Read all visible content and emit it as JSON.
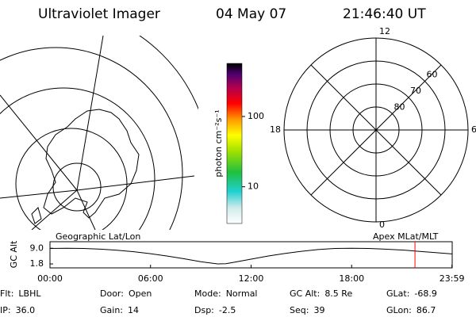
{
  "header": {
    "instrument": "Ultraviolet Imager",
    "date": "04 May 07",
    "time": "21:46:40 UT"
  },
  "map": {
    "label": "Geographic Lat/Lon"
  },
  "colorbar": {
    "label": "photon cm⁻²s⁻¹",
    "scale": "log",
    "lim": [
      3,
      570
    ],
    "ticks": [
      10,
      100
    ]
  },
  "polar": {
    "label": "Apex MLat/MLT",
    "lat_labels": [
      80,
      70,
      60
    ],
    "mlt_labels": [
      12,
      18,
      6,
      0
    ]
  },
  "chart_data": {
    "type": "line",
    "ylabel": "GC Alt",
    "color": "#000000",
    "x": [
      0,
      1,
      2,
      3,
      4,
      5,
      6,
      7,
      8,
      9,
      10,
      10.5,
      11,
      12,
      13,
      14,
      15,
      16,
      17,
      18,
      19,
      20,
      21,
      22,
      23,
      23.98
    ],
    "values": [
      8.9,
      9.0,
      8.9,
      8.6,
      8.1,
      7.4,
      6.5,
      5.4,
      4.2,
      2.8,
      1.8,
      1.9,
      2.6,
      4.0,
      5.4,
      6.6,
      7.6,
      8.4,
      8.9,
      9.0,
      8.9,
      8.6,
      8.2,
      7.6,
      7.0,
      6.4
    ],
    "xlim": [
      0,
      24
    ],
    "ylim": [
      0,
      12
    ],
    "xticks": [
      {
        "value": 0,
        "label": "00:00"
      },
      {
        "value": 6,
        "label": "06:00"
      },
      {
        "value": 12,
        "label": "12:00"
      },
      {
        "value": 18,
        "label": "18:00"
      },
      {
        "value": 23.983,
        "label": "23:59"
      }
    ],
    "yticks": [
      {
        "value": 9.0,
        "label": "9.0"
      },
      {
        "value": 1.8,
        "label": "1.8"
      }
    ],
    "marker_time": 21.778,
    "marker_color": "#ff0000"
  },
  "info": [
    [
      {
        "label": "Flt:",
        "value": "LBHL"
      },
      {
        "label": "Door:",
        "value": "Open"
      },
      {
        "label": "Mode:",
        "value": "Normal"
      },
      {
        "label": "GC Alt:",
        "value": "8.5 Re"
      },
      {
        "label": "GLat:",
        "value": "-68.9"
      }
    ],
    [
      {
        "label": "IP:",
        "value": "36.0"
      },
      {
        "label": "Gain:",
        "value": "14"
      },
      {
        "label": "Dsp:",
        "value": "-2.5"
      },
      {
        "label": "Seq:",
        "value": "39"
      },
      {
        "label": "GLon:",
        "value": "86.7"
      }
    ]
  ]
}
